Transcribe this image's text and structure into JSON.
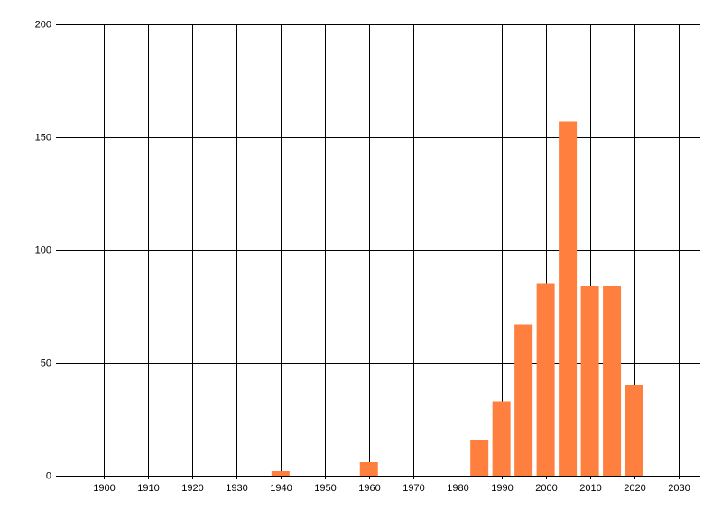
{
  "chart_data": {
    "type": "bar",
    "x": [
      1940,
      1960,
      1985,
      1990,
      1995,
      2000,
      2005,
      2010,
      2015,
      2020
    ],
    "values": [
      2,
      6,
      16,
      33,
      67,
      85,
      157,
      84,
      84,
      40
    ],
    "color": "#ff7f3f",
    "xlim": [
      1890,
      2035
    ],
    "xticks": [
      1900,
      1910,
      1920,
      1930,
      1940,
      1950,
      1960,
      1970,
      1980,
      1990,
      2000,
      2010,
      2020,
      2030
    ],
    "ylim": [
      0,
      200
    ],
    "yticks": [
      0,
      50,
      100,
      150,
      200
    ],
    "grid": true
  }
}
